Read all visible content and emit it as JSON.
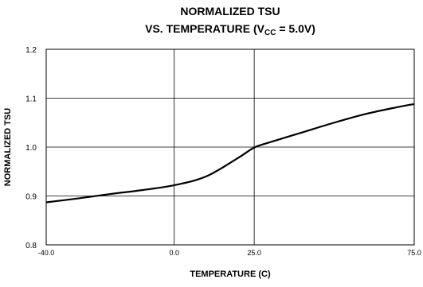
{
  "chart_data": {
    "type": "line",
    "title_line1": "NORMALIZED TSU",
    "title_line2_prefix": "VS. TEMPERATURE (V",
    "title_line2_sub": "CC",
    "title_line2_suffix": " = 5.0V)",
    "xlabel": "TEMPERATURE (C)",
    "ylabel": "NORMALIZED TSU",
    "xlim": [
      -40,
      75
    ],
    "ylim": [
      0.8,
      1.2
    ],
    "x_ticks": [
      -40,
      0,
      25,
      75
    ],
    "x_tick_labels": [
      "-40.0",
      "0.0",
      "25.0",
      "75.0"
    ],
    "y_ticks": [
      0.8,
      0.9,
      1.0,
      1.1,
      1.2
    ],
    "y_tick_labels": [
      "0.8",
      "0.9",
      "1.0",
      "1.1",
      "1.2"
    ],
    "grid": true,
    "series": [
      {
        "color": "#000000",
        "x": [
          -40,
          -30,
          -20,
          -10,
          0,
          10,
          20,
          25,
          30,
          40,
          50,
          60,
          70,
          75
        ],
        "y": [
          0.887,
          0.895,
          0.904,
          0.912,
          0.922,
          0.94,
          0.978,
          0.999,
          1.01,
          1.03,
          1.05,
          1.068,
          1.082,
          1.088
        ]
      }
    ]
  }
}
